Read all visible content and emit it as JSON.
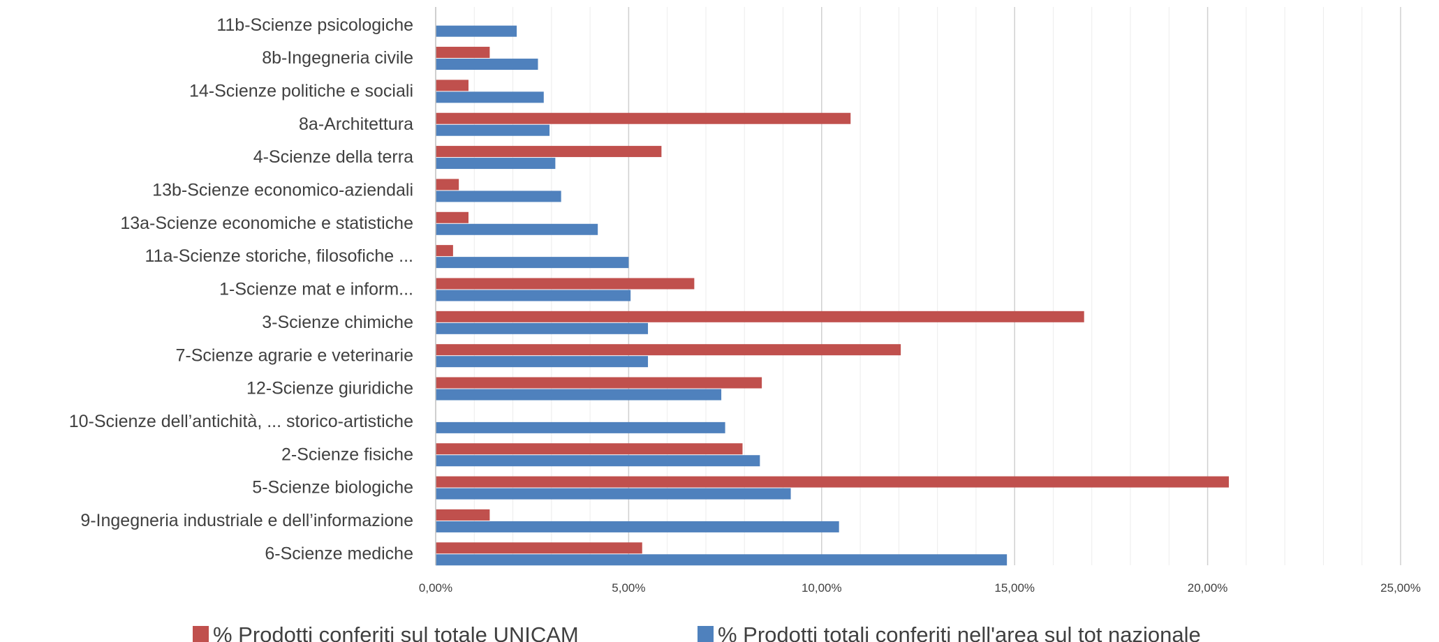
{
  "chart_data": {
    "type": "bar",
    "orientation": "horizontal",
    "categories": [
      "6-Scienze mediche",
      "9-Ingegneria industriale e dell’informazione",
      "5-Scienze biologiche",
      "2-Scienze fisiche",
      "10-Scienze dell’antichità, ... storico-artistiche",
      "12-Scienze giuridiche",
      "7-Scienze agrarie e veterinarie",
      "3-Scienze chimiche",
      "1-Scienze mat e inform...",
      "11a-Scienze storiche, filosofiche ...",
      "13a-Scienze economiche e statistiche",
      "13b-Scienze economico-aziendali",
      "4-Scienze della terra",
      "8a-Architettura",
      "14-Scienze politiche e sociali",
      "8b-Ingegneria civile",
      "11b-Scienze psicologiche"
    ],
    "series": [
      {
        "name": "% Prodotti conferiti sul totale UNICAM",
        "color": "#c0504d",
        "values": [
          5.35,
          1.4,
          20.55,
          7.95,
          0,
          8.45,
          12.05,
          16.8,
          6.7,
          0.45,
          0.85,
          0.6,
          5.85,
          10.75,
          0.85,
          1.4,
          0
        ]
      },
      {
        "name": "% Prodotti totali conferiti nell'area sul tot nazionale",
        "color": "#4f81bd",
        "values": [
          14.8,
          10.45,
          9.2,
          8.4,
          7.5,
          7.4,
          5.5,
          5.5,
          5.05,
          5.0,
          4.2,
          3.25,
          3.1,
          2.95,
          2.8,
          2.65,
          2.1
        ]
      }
    ],
    "x_ticks": [
      "0,00%",
      "5,00%",
      "10,00%",
      "15,00%",
      "20,00%",
      "25,00%"
    ],
    "xlim": [
      0,
      25
    ],
    "major_step": 5,
    "minor_step": 1,
    "grid": "vertical",
    "legend_position": "bottom"
  }
}
